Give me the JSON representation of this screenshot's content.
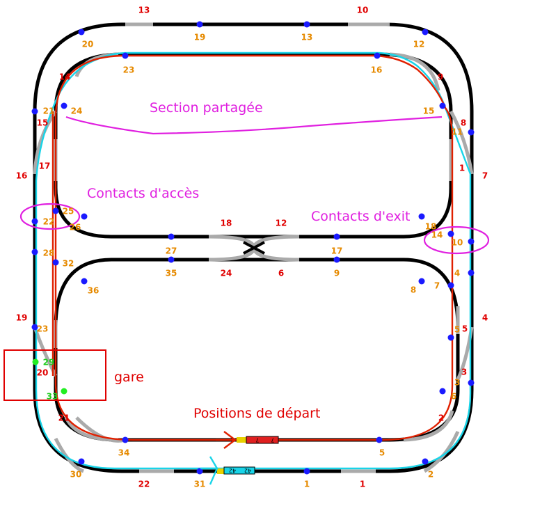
{
  "annotations": {
    "shared_section": "Section partagée",
    "access_contacts": "Contacts d'accès",
    "exit_contacts": "Contacts d'exit",
    "station": "gare",
    "start_positions": "Positions de départ"
  },
  "trains": {
    "red_train": "7",
    "cyan_train": "42"
  },
  "colors": {
    "track": "#000000",
    "turnout": "#aaaaaa",
    "route_cyan": "#18d4e8",
    "route_red": "#e02000",
    "contact": "#1a1aff",
    "station_contact": "#22ee22",
    "block_label": "#e00000",
    "contact_label": "#e68a00",
    "annotation": "#e020e0"
  },
  "block_labels": [
    "13",
    "10",
    "14",
    "9",
    "15",
    "8",
    "16",
    "1",
    "7",
    "18",
    "12",
    "19",
    "4",
    "5",
    "3",
    "20",
    "21",
    "2",
    "22",
    "1",
    "24",
    "6",
    "17"
  ],
  "contact_labels": [
    "20",
    "19",
    "13",
    "12",
    "23",
    "16",
    "21",
    "24",
    "15",
    "11",
    "25",
    "22",
    "26",
    "27",
    "17",
    "18",
    "14",
    "10",
    "28",
    "32",
    "35",
    "9",
    "4",
    "36",
    "8",
    "7",
    "23",
    "5",
    "3",
    "6",
    "34",
    "5",
    "30",
    "31",
    "1",
    "2"
  ],
  "station_contact_labels": [
    "29",
    "33"
  ]
}
